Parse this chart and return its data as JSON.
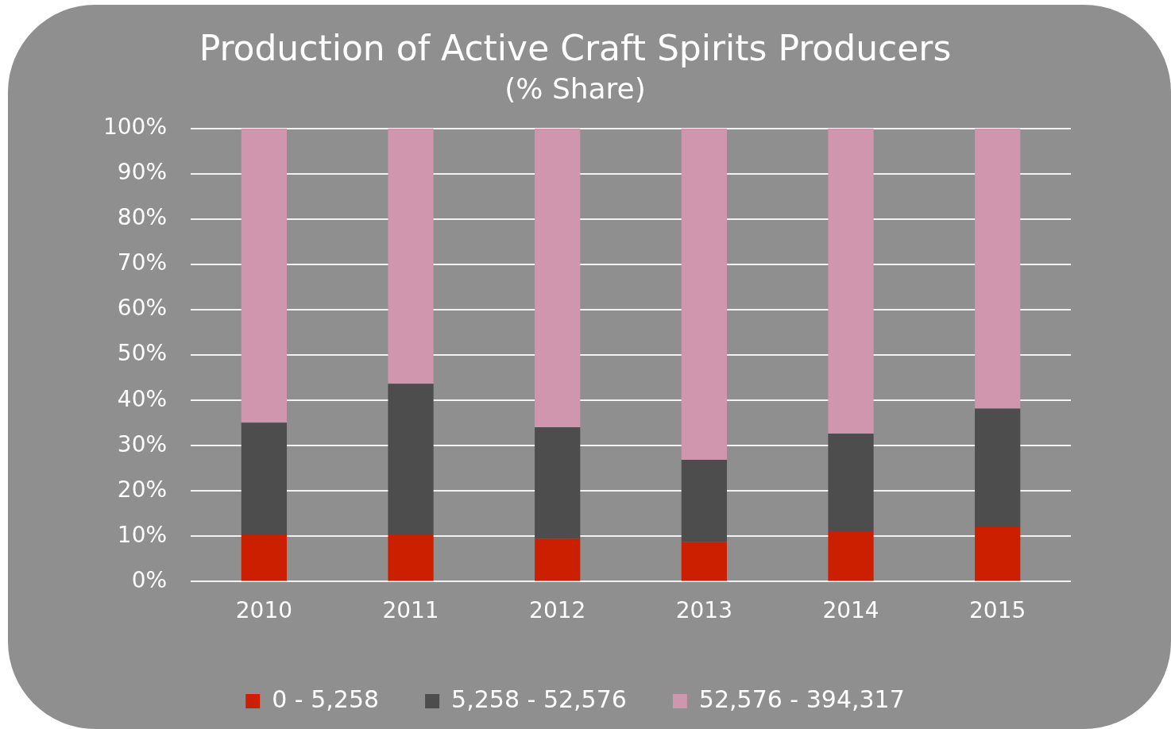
{
  "chart_data": {
    "type": "bar",
    "title": "Production of Active Craft Spirits Producers",
    "subtitle": "(% Share)",
    "categories": [
      "2010",
      "2011",
      "2012",
      "2013",
      "2014",
      "2015"
    ],
    "stacked": true,
    "series": [
      {
        "name": "0 - 5,258",
        "color": "#cc1f00",
        "values": [
          10.4,
          10.4,
          9.4,
          8.7,
          11.1,
          12.0
        ]
      },
      {
        "name": "5,258 - 52,576",
        "color": "#4d4d4d",
        "values": [
          24.7,
          33.3,
          24.7,
          18.2,
          21.6,
          26.2
        ]
      },
      {
        "name": "52,576 - 394,317",
        "color": "#d096ae",
        "values": [
          64.9,
          56.3,
          65.9,
          73.1,
          67.3,
          61.8
        ]
      }
    ],
    "ylim": [
      0,
      100
    ],
    "yticks": [
      {
        "value": 0,
        "label": "0%"
      },
      {
        "value": 10,
        "label": "10%"
      },
      {
        "value": 20,
        "label": "20%"
      },
      {
        "value": 30,
        "label": "30%"
      },
      {
        "value": 40,
        "label": "40%"
      },
      {
        "value": 50,
        "label": "50%"
      },
      {
        "value": 60,
        "label": "60%"
      },
      {
        "value": 70,
        "label": "70%"
      },
      {
        "value": 80,
        "label": "80%"
      },
      {
        "value": 90,
        "label": "90%"
      },
      {
        "value": 100,
        "label": "100%"
      }
    ],
    "grid": "y",
    "legend": "bottom"
  }
}
